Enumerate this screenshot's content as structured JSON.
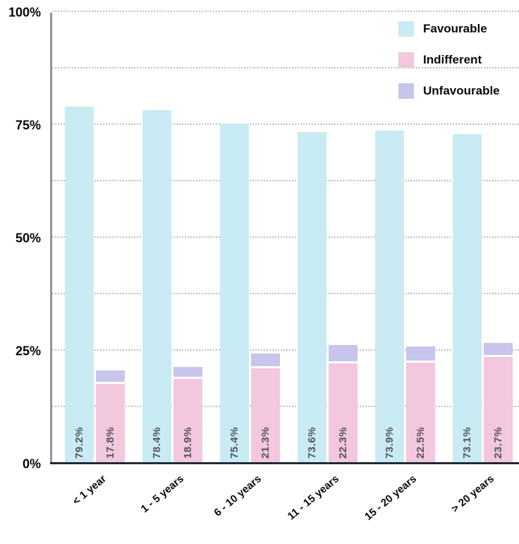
{
  "chart_data": {
    "type": "bar",
    "subtype": "grouped-with-stacked-column",
    "title": "",
    "xlabel": "",
    "ylabel": "",
    "ylim": [
      0,
      100
    ],
    "grid": "dotted horizontal every 12.5%",
    "gridlines": [
      12.5,
      25,
      37.5,
      50,
      62.5,
      75,
      87.5,
      100
    ],
    "y_ticks": [
      {
        "value": 100,
        "label": "100%"
      },
      {
        "value": 75,
        "label": "75%"
      },
      {
        "value": 50,
        "label": "50%"
      },
      {
        "value": 25,
        "label": "25%"
      },
      {
        "value": 0,
        "label": "0%"
      }
    ],
    "categories": [
      "< 1 year",
      "1 - 5 years",
      "6 - 10 years",
      "11 - 15 years",
      "15 - 20 years",
      "> 20 years"
    ],
    "series": [
      {
        "name": "Favourable",
        "color": "#c9ebf3",
        "values": [
          79.2,
          78.4,
          75.4,
          73.6,
          73.9,
          73.1
        ],
        "labels": [
          "79.2%",
          "78.4%",
          "75.4%",
          "73.6%",
          "73.9%",
          "73.1%"
        ]
      },
      {
        "name": "Indifferent",
        "color": "#f3c7de",
        "values": [
          17.8,
          18.9,
          21.3,
          22.3,
          22.5,
          23.7
        ],
        "labels": [
          "17.8%",
          "18.9%",
          "21.3%",
          "22.3%",
          "22.5%",
          "23.7%"
        ]
      },
      {
        "name": "Unfavourable",
        "color": "#c7c4ed",
        "values": [
          3.0,
          2.7,
          3.3,
          4.1,
          3.6,
          3.2
        ],
        "labels": [
          "",
          "",
          "",
          "",
          "",
          ""
        ]
      }
    ],
    "legend": {
      "position": "top-right",
      "items": [
        {
          "label": "Favourable",
          "color": "#c9ebf3"
        },
        {
          "label": "Indifferent",
          "color": "#f3c7de"
        },
        {
          "label": "Unfavourable",
          "color": "#c7c4ed"
        }
      ]
    }
  },
  "colors": {
    "favourable": "#c9ebf3",
    "indifferent": "#f3c7de",
    "unfavourable": "#c7c4ed",
    "gridline": "#bfbfbf",
    "y_axis_line": "#8f9499",
    "x_axis_line": "#222a3a",
    "bar_value_text": "#55555d",
    "tick_text": "#0a0a0a",
    "background": "#ffffff"
  }
}
